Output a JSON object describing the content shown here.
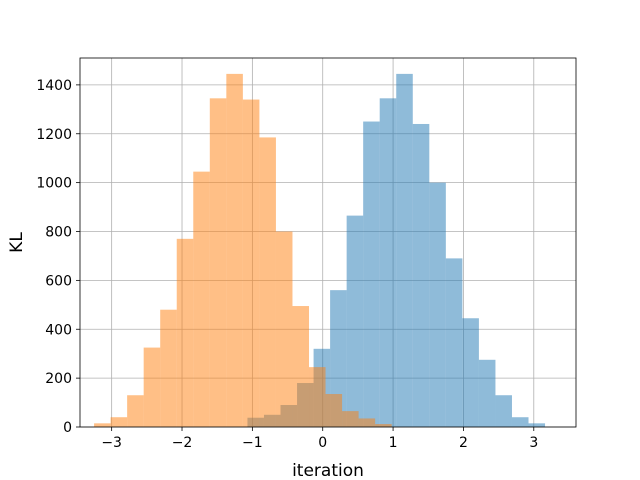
{
  "chart_data": {
    "type": "bar",
    "subtype": "overlapping-histogram",
    "title": "",
    "xlabel": "iteration",
    "ylabel": "KL",
    "xlim": [
      -3.45,
      3.6
    ],
    "ylim": [
      0,
      1510
    ],
    "grid": true,
    "legend": "none",
    "x_ticks": [
      -3,
      -2,
      -1,
      0,
      1,
      2,
      3
    ],
    "x_tick_labels": [
      "−3",
      "−2",
      "−1",
      "0",
      "1",
      "2",
      "3"
    ],
    "y_ticks": [
      0,
      200,
      400,
      600,
      800,
      1000,
      1200,
      1400
    ],
    "y_tick_labels": [
      "0",
      "200",
      "400",
      "600",
      "800",
      "1000",
      "1200",
      "1400"
    ],
    "series": [
      {
        "color": "#1f77b4",
        "alpha": 0.5,
        "bin_edges": [
          -1.07,
          -0.835,
          -0.6,
          -0.365,
          -0.13,
          0.105,
          0.34,
          0.575,
          0.81,
          1.045,
          1.28,
          1.515,
          1.75,
          1.985,
          2.22,
          2.455,
          2.69,
          2.925,
          3.16
        ],
        "counts": [
          38,
          50,
          90,
          180,
          320,
          560,
          865,
          1250,
          1345,
          1445,
          1240,
          1000,
          690,
          445,
          275,
          130,
          40,
          15
        ]
      },
      {
        "color": "#ff7f0e",
        "alpha": 0.5,
        "bin_edges": [
          -3.25,
          -3.015,
          -2.78,
          -2.545,
          -2.31,
          -2.075,
          -1.84,
          -1.605,
          -1.37,
          -1.135,
          -0.9,
          -0.665,
          -0.43,
          -0.195,
          0.04,
          0.275,
          0.51,
          0.745,
          0.98
        ],
        "counts": [
          15,
          40,
          130,
          325,
          480,
          770,
          1045,
          1345,
          1445,
          1340,
          1185,
          800,
          495,
          245,
          135,
          65,
          35,
          12
        ]
      }
    ]
  }
}
